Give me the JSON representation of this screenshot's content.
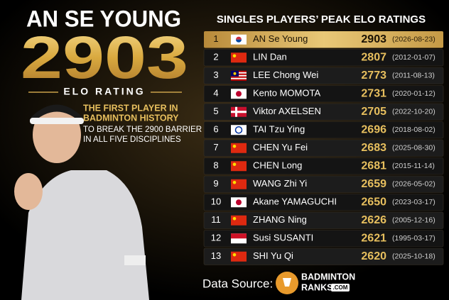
{
  "hero": {
    "name": "AN SE YOUNG",
    "rating": 2903,
    "rating_label": "ELO RATING",
    "highlight_lines": [
      "THE FIRST PLAYER IN",
      "BADMINTON HISTORY"
    ],
    "detail_lines": [
      "TO BREAK THE 2900 BARRIER",
      "IN ALL FIVE DISCIPLINES"
    ]
  },
  "table": {
    "title": "SINGLES PLAYERS’ PEAK ELO RATINGS",
    "rows": [
      {
        "rank": 1,
        "flag": "kr",
        "player": "AN Se Young",
        "rating": 2903,
        "date": "(2026-08-23)"
      },
      {
        "rank": 2,
        "flag": "cn",
        "player": "LIN Dan",
        "rating": 2807,
        "date": "(2012-01-07)"
      },
      {
        "rank": 3,
        "flag": "my",
        "player": "LEE Chong Wei",
        "rating": 2773,
        "date": "(2011-08-13)"
      },
      {
        "rank": 4,
        "flag": "jp",
        "player": "Kento MOMOTA",
        "rating": 2731,
        "date": "(2020-01-12)"
      },
      {
        "rank": 5,
        "flag": "dk",
        "player": "Viktor AXELSEN",
        "rating": 2705,
        "date": "(2022-10-20)"
      },
      {
        "rank": 6,
        "flag": "tpe",
        "player": "TAI Tzu Ying",
        "rating": 2696,
        "date": "(2018-08-02)"
      },
      {
        "rank": 7,
        "flag": "cn",
        "player": "CHEN Yu Fei",
        "rating": 2683,
        "date": "(2025-08-30)"
      },
      {
        "rank": 8,
        "flag": "cn",
        "player": "CHEN Long",
        "rating": 2681,
        "date": "(2015-11-14)"
      },
      {
        "rank": 9,
        "flag": "cn",
        "player": "WANG Zhi Yi",
        "rating": 2659,
        "date": "(2026-05-02)"
      },
      {
        "rank": 10,
        "flag": "jp",
        "player": "Akane YAMAGUCHI",
        "rating": 2650,
        "date": "(2023-03-17)"
      },
      {
        "rank": 11,
        "flag": "cn",
        "player": "ZHANG Ning",
        "rating": 2626,
        "date": "(2005-12-16)"
      },
      {
        "rank": 12,
        "flag": "id",
        "player": "Susi SUSANTI",
        "rating": 2621,
        "date": "(1995-03-17)"
      },
      {
        "rank": 13,
        "flag": "cn",
        "player": "SHI Yu Qi",
        "rating": 2620,
        "date": "(2025-10-18)"
      }
    ]
  },
  "footer": {
    "source_label": "Data Source:",
    "logo_line1": "BADMINTON",
    "logo_line2": "RANKS",
    "logo_line3": ".COM"
  }
}
